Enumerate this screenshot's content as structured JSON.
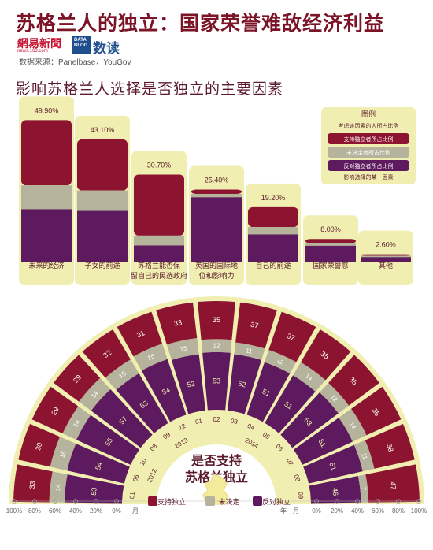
{
  "title": "苏格兰人的独立：国家荣誉难敌经济利益",
  "logo_163": "網易新聞",
  "logo_163_sub": "news.163.com",
  "logo_db_badge": "DATA BLOG",
  "logo_db_text": "数读",
  "source": "数据来源：Panelbase，YouGov",
  "subtitle": "影响苏格兰人选择是否独立的主要因素",
  "colors": {
    "support": "#8c1430",
    "undecided": "#b5b39c",
    "oppose": "#5e1a5e",
    "panel": "#f0eeb0",
    "dark": "#5a1a2b"
  },
  "legend": {
    "title": "图例",
    "pct_label": "考虑该因素的人所占比例",
    "support": "支持独立者所占比例",
    "undecided": "未决定者所占比例",
    "oppose": "反对独立者所占比例",
    "factor": "影响选择的某一因素"
  },
  "fan_center_line1": "是否支持",
  "fan_center_line2": "苏格兰独立",
  "fan_legend": {
    "support": "支持独立",
    "undecided": "未决定",
    "oppose": "反对独立"
  },
  "month_axis_label": "月",
  "year_axis_label": "年",
  "chart_data": [
    {
      "type": "bar",
      "title": "影响苏格兰人选择是否独立的主要因素",
      "categories": [
        "未来的经济",
        "子女的前途",
        "苏格兰能否保留自己的民选政府",
        "英国的国际地位和影响力",
        "自己的前途",
        "国家荣誉感",
        "其他"
      ],
      "values": [
        49.9,
        43.1,
        30.7,
        25.4,
        19.2,
        8.0,
        2.6
      ],
      "value_labels": [
        "49.90%",
        "43.10%",
        "30.70%",
        "25.40%",
        "19.20%",
        "8.00%",
        "2.60%"
      ],
      "series": [
        {
          "name": "支持独立者所占比例",
          "values": [
            23.0,
            18.0,
            21.5,
            1.5,
            7.0,
            1.5,
            0.5
          ]
        },
        {
          "name": "未决定者所占比例",
          "values": [
            8.4,
            7.2,
            3.5,
            1.2,
            2.6,
            0.9,
            0.5
          ]
        },
        {
          "name": "反对独立者所占比例",
          "values": [
            18.5,
            17.9,
            5.7,
            22.7,
            9.6,
            5.6,
            1.6
          ]
        }
      ],
      "ylim": [
        0,
        50
      ]
    },
    {
      "type": "bar",
      "title": "是否支持苏格兰独立",
      "note": "radial stacked 100% bars by poll month",
      "categories": [
        "2012-01",
        "2012-06",
        "2012-10",
        "2013-08",
        "2013-09",
        "2013-12",
        "2014-01",
        "2014-02",
        "2014-03",
        "2014-04",
        "2014-05",
        "2014-06",
        "2014-07",
        "2014-08",
        "2014-09"
      ],
      "month_labels": [
        "01",
        "06",
        "10",
        "08",
        "09",
        "12",
        "01",
        "02",
        "03",
        "04",
        "05",
        "06",
        "07",
        "08",
        "09"
      ],
      "year_labels": [
        "2012",
        "2013",
        "2014"
      ],
      "series": [
        {
          "name": "支持独立",
          "values": [
            33,
            30,
            29,
            29,
            32,
            31,
            33,
            35,
            37,
            37,
            35,
            35,
            35,
            38,
            47
          ]
        },
        {
          "name": "未决定",
          "values": [
            14,
            16,
            14,
            14,
            15,
            15,
            15,
            12,
            11,
            12,
            14,
            12,
            14,
            11,
            7
          ]
        },
        {
          "name": "反对独立",
          "values": [
            53,
            54,
            55,
            57,
            53,
            54,
            52,
            53,
            52,
            51,
            51,
            53,
            51,
            51,
            46
          ]
        }
      ],
      "axis_ticks": [
        "100%",
        "80%",
        "60%",
        "40%",
        "20%",
        "0%"
      ]
    }
  ]
}
